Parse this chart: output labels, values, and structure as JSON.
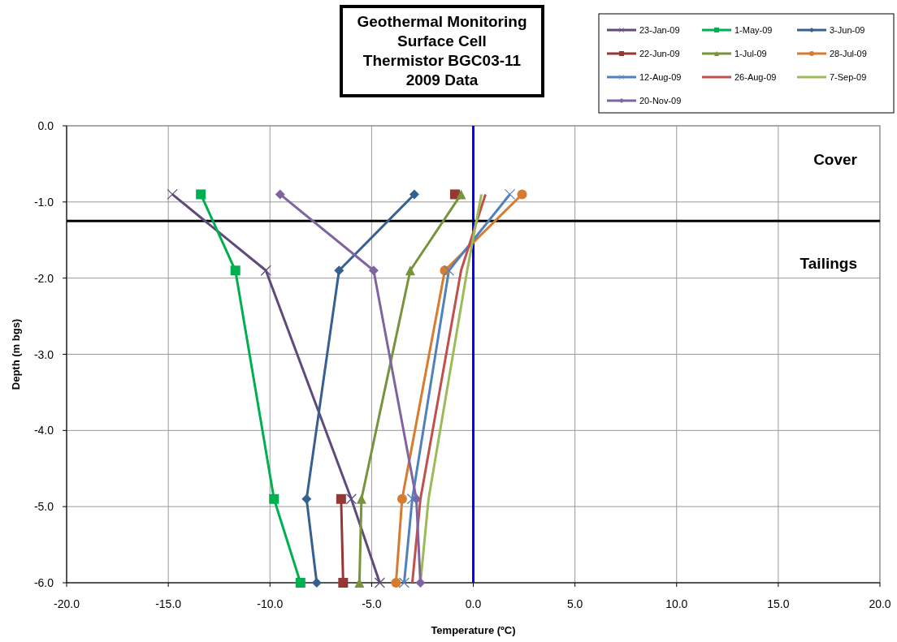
{
  "chart_data": {
    "type": "line",
    "title": "Geothermal Monitoring\nSurface Cell\nThermistor BGC03-11\n2009 Data",
    "xlabel": "Temperature (ºC)",
    "ylabel": "Depth (m bgs)",
    "xlim": [
      -20,
      20
    ],
    "xticks": [
      {
        "value": -20,
        "label": "-20.0"
      },
      {
        "value": -15,
        "label": "-15.0"
      },
      {
        "value": -10,
        "label": "-10.0"
      },
      {
        "value": -5,
        "label": "-5.0"
      },
      {
        "value": 0,
        "label": "0.0"
      },
      {
        "value": 5,
        "label": "5.0"
      },
      {
        "value": 10,
        "label": "10.0"
      },
      {
        "value": 15,
        "label": "15.0"
      },
      {
        "value": 20,
        "label": "20.0"
      }
    ],
    "ylim": [
      -6,
      0
    ],
    "yticks": [
      {
        "value": 0,
        "label": "0.0"
      },
      {
        "value": -1,
        "label": "-1.0"
      },
      {
        "value": -2,
        "label": "-2.0"
      },
      {
        "value": -3,
        "label": "-3.0"
      },
      {
        "value": -4,
        "label": "-4.0"
      },
      {
        "value": -5,
        "label": "-5.0"
      },
      {
        "value": -6,
        "label": "-6.0"
      }
    ],
    "grid": true,
    "legend": "top right",
    "ref_lines": [
      {
        "axis": "x",
        "value": 0,
        "label": null,
        "color": "#0000ff"
      },
      {
        "axis": "y",
        "value": -1.25,
        "label": null,
        "color": "#000000"
      }
    ],
    "annotations": [
      "Cover",
      "Tailings"
    ],
    "series": [
      {
        "name": "23-Jan-09",
        "color": "#604a7b",
        "marker": "cross",
        "x": [
          -14.8,
          -10.2,
          -6.0,
          -4.6
        ],
        "values": [
          -0.9,
          -1.9,
          -4.9,
          -6
        ]
      },
      {
        "name": "1-May-09",
        "color": "#00b050",
        "marker": "square",
        "x": [
          -13.4,
          -11.7,
          -9.8,
          -8.5
        ],
        "values": [
          -0.9,
          -1.9,
          -4.9,
          -6
        ]
      },
      {
        "name": "3-Jun-09",
        "color": "#376092",
        "marker": "diamond",
        "x": [
          -2.9,
          -6.6,
          -8.2,
          -7.7
        ],
        "values": [
          -0.9,
          -1.9,
          -4.9,
          -6
        ]
      },
      {
        "name": "22-Jun-09",
        "color": "#953735",
        "marker": "square",
        "x": [
          -0.9,
          null,
          -6.5,
          -6.4
        ],
        "values": [
          -0.9,
          null,
          -4.9,
          -6
        ]
      },
      {
        "name": "1-Jul-09",
        "color": "#77933c",
        "marker": "triangle",
        "x": [
          -0.6,
          -3.1,
          -5.5,
          -5.6
        ],
        "values": [
          -0.9,
          -1.9,
          -4.9,
          -6
        ]
      },
      {
        "name": "28-Jul-09",
        "color": "#d77b2f",
        "marker": "circle",
        "x": [
          2.4,
          -1.4,
          -3.5,
          -3.8
        ],
        "values": [
          -0.9,
          -1.9,
          -4.9,
          -6
        ]
      },
      {
        "name": "12-Aug-09",
        "color": "#4f81bd",
        "marker": "cross",
        "x": [
          1.8,
          -1.2,
          -3.0,
          -3.4
        ],
        "values": [
          -0.9,
          -1.9,
          -4.9,
          -6
        ]
      },
      {
        "name": "26-Aug-09",
        "color": "#c0504d",
        "marker": "none",
        "x": [
          0.6,
          -0.6,
          -2.6,
          -3.0
        ],
        "values": [
          -0.9,
          -1.9,
          -4.9,
          -6
        ]
      },
      {
        "name": "7-Sep-09",
        "color": "#9bbb59",
        "marker": "none",
        "x": [
          0.4,
          -0.3,
          -2.2,
          -2.6
        ],
        "values": [
          -0.9,
          -1.9,
          -4.9,
          -6
        ]
      },
      {
        "name": "20-Nov-09",
        "color": "#8064a2",
        "marker": "diamond",
        "x": [
          -9.5,
          -4.9,
          -2.8,
          -2.6
        ],
        "values": [
          -0.9,
          -1.9,
          -4.9,
          -6
        ]
      }
    ]
  }
}
